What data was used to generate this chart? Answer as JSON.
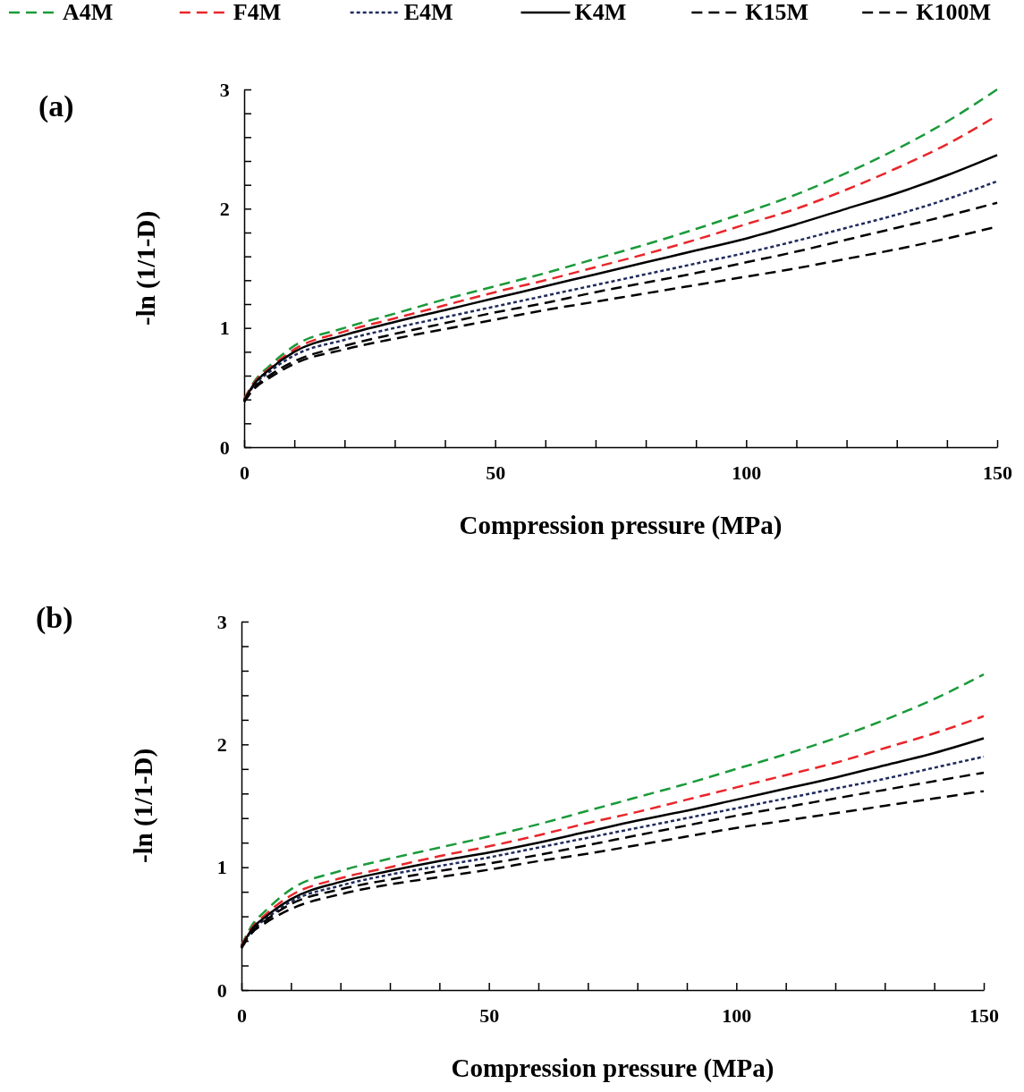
{
  "chart_data": [
    {
      "type": "line",
      "title": "(a)",
      "xlabel": "Compression pressure (MPa)",
      "ylabel": "-ln (1/1-D)",
      "legend": "top",
      "grid": false,
      "marker": "none",
      "x": [
        0,
        2,
        5,
        10,
        20,
        30,
        40,
        50,
        60,
        70,
        80,
        90,
        100,
        110,
        120,
        130,
        140,
        150
      ],
      "xlim": [
        0,
        150
      ],
      "ylim": [
        0,
        3
      ],
      "xticks": [
        0,
        {
          "value": 10,
          "label": null
        },
        {
          "value": 20,
          "label": null
        },
        {
          "value": 30,
          "label": null
        },
        {
          "value": 40,
          "label": null
        },
        50,
        {
          "value": 60,
          "label": null
        },
        {
          "value": 70,
          "label": null
        },
        {
          "value": 80,
          "label": null
        },
        {
          "value": 90,
          "label": null
        },
        100,
        {
          "value": 110,
          "label": null
        },
        {
          "value": 120,
          "label": null
        },
        {
          "value": 130,
          "label": null
        },
        {
          "value": 140,
          "label": null
        },
        150
      ],
      "yticks": [
        0,
        {
          "value": 0.2,
          "label": null
        },
        {
          "value": 0.4,
          "label": null
        },
        {
          "value": 0.6,
          "label": null
        },
        {
          "value": 0.8,
          "label": null
        },
        1,
        {
          "value": 1.2,
          "label": null
        },
        {
          "value": 1.4,
          "label": null
        },
        {
          "value": 1.6,
          "label": null
        },
        {
          "value": 1.8,
          "label": null
        },
        2,
        {
          "value": 2.2,
          "label": null
        },
        {
          "value": 2.4,
          "label": null
        },
        {
          "value": 2.6,
          "label": null
        },
        {
          "value": 2.8,
          "label": null
        },
        3
      ],
      "series": [
        {
          "name": "A4M",
          "color": "#1a9a3a",
          "line_style": "dashed",
          "values": [
            0.4,
            0.55,
            0.68,
            0.85,
            1.0,
            1.12,
            1.24,
            1.35,
            1.46,
            1.58,
            1.7,
            1.83,
            1.97,
            2.12,
            2.3,
            2.5,
            2.73,
            3.0
          ]
        },
        {
          "name": "F4M",
          "color": "#e8262a",
          "line_style": "dashed",
          "values": [
            0.4,
            0.54,
            0.66,
            0.82,
            0.97,
            1.08,
            1.19,
            1.3,
            1.4,
            1.51,
            1.62,
            1.74,
            1.87,
            2.0,
            2.16,
            2.34,
            2.54,
            2.78
          ]
        },
        {
          "name": "E4M",
          "color": "#1f2a5c",
          "line_style": "dotted",
          "values": [
            0.39,
            0.52,
            0.63,
            0.77,
            0.9,
            1.0,
            1.09,
            1.18,
            1.27,
            1.36,
            1.45,
            1.54,
            1.63,
            1.73,
            1.84,
            1.95,
            2.08,
            2.23
          ]
        },
        {
          "name": "K4M",
          "color": "#000000",
          "line_style": "solid",
          "values": [
            0.39,
            0.53,
            0.65,
            0.8,
            0.94,
            1.05,
            1.15,
            1.25,
            1.35,
            1.45,
            1.55,
            1.65,
            1.75,
            1.87,
            2.0,
            2.13,
            2.28,
            2.45
          ]
        },
        {
          "name": "K15M",
          "color": "#000000",
          "line_style": "dashed",
          "values": [
            0.38,
            0.5,
            0.6,
            0.72,
            0.85,
            0.95,
            1.04,
            1.13,
            1.21,
            1.3,
            1.38,
            1.46,
            1.55,
            1.64,
            1.74,
            1.84,
            1.94,
            2.05
          ]
        },
        {
          "name": "K100M",
          "color": "#000000",
          "line_style": "dashed",
          "values": [
            0.38,
            0.49,
            0.58,
            0.7,
            0.82,
            0.91,
            0.99,
            1.07,
            1.15,
            1.22,
            1.29,
            1.36,
            1.43,
            1.5,
            1.58,
            1.66,
            1.75,
            1.85
          ]
        }
      ]
    },
    {
      "type": "line",
      "title": "(b)",
      "xlabel": "Compression pressure (MPa)",
      "ylabel": "-ln (1/1-D)",
      "grid": false,
      "marker": "none",
      "x": [
        0,
        2,
        5,
        10,
        20,
        30,
        40,
        50,
        60,
        70,
        80,
        90,
        100,
        110,
        120,
        130,
        140,
        150
      ],
      "xlim": [
        0,
        150
      ],
      "ylim": [
        0,
        3
      ],
      "xticks": [
        0,
        {
          "value": 10,
          "label": null
        },
        {
          "value": 20,
          "label": null
        },
        {
          "value": 30,
          "label": null
        },
        {
          "value": 40,
          "label": null
        },
        50,
        {
          "value": 60,
          "label": null
        },
        {
          "value": 70,
          "label": null
        },
        {
          "value": 80,
          "label": null
        },
        {
          "value": 90,
          "label": null
        },
        100,
        {
          "value": 110,
          "label": null
        },
        {
          "value": 120,
          "label": null
        },
        {
          "value": 130,
          "label": null
        },
        {
          "value": 140,
          "label": null
        },
        150
      ],
      "yticks": [
        0,
        {
          "value": 0.2,
          "label": null
        },
        {
          "value": 0.4,
          "label": null
        },
        {
          "value": 0.6,
          "label": null
        },
        {
          "value": 0.8,
          "label": null
        },
        1,
        {
          "value": 1.2,
          "label": null
        },
        {
          "value": 1.4,
          "label": null
        },
        {
          "value": 1.6,
          "label": null
        },
        {
          "value": 1.8,
          "label": null
        },
        2,
        {
          "value": 2.2,
          "label": null
        },
        {
          "value": 2.4,
          "label": null
        },
        {
          "value": 2.6,
          "label": null
        },
        {
          "value": 2.8,
          "label": null
        },
        3
      ],
      "series": [
        {
          "color": "#1a9a3a",
          "line_style": "dashed",
          "values": [
            0.36,
            0.52,
            0.65,
            0.82,
            0.97,
            1.07,
            1.16,
            1.25,
            1.35,
            1.46,
            1.57,
            1.68,
            1.8,
            1.92,
            2.05,
            2.2,
            2.37,
            2.57
          ]
        },
        {
          "color": "#e8262a",
          "line_style": "dashed",
          "values": [
            0.36,
            0.5,
            0.62,
            0.77,
            0.91,
            1.0,
            1.09,
            1.17,
            1.26,
            1.36,
            1.45,
            1.55,
            1.65,
            1.75,
            1.85,
            1.97,
            2.09,
            2.23
          ]
        },
        {
          "color": "#1f2a5c",
          "line_style": "dotted",
          "values": [
            0.35,
            0.48,
            0.58,
            0.72,
            0.85,
            0.94,
            1.01,
            1.08,
            1.16,
            1.24,
            1.32,
            1.4,
            1.48,
            1.56,
            1.64,
            1.72,
            1.81,
            1.9
          ]
        },
        {
          "color": "#000000",
          "line_style": "solid",
          "values": [
            0.35,
            0.49,
            0.6,
            0.74,
            0.88,
            0.97,
            1.05,
            1.12,
            1.2,
            1.29,
            1.38,
            1.46,
            1.55,
            1.64,
            1.73,
            1.83,
            1.93,
            2.05
          ]
        },
        {
          "color": "#000000",
          "line_style": "dashed",
          "values": [
            0.35,
            0.47,
            0.57,
            0.7,
            0.82,
            0.9,
            0.97,
            1.03,
            1.1,
            1.18,
            1.26,
            1.34,
            1.42,
            1.49,
            1.56,
            1.63,
            1.7,
            1.77
          ]
        },
        {
          "color": "#000000",
          "line_style": "dashed",
          "values": [
            0.34,
            0.46,
            0.55,
            0.66,
            0.78,
            0.86,
            0.92,
            0.98,
            1.05,
            1.11,
            1.18,
            1.25,
            1.32,
            1.38,
            1.44,
            1.5,
            1.56,
            1.62
          ]
        }
      ]
    }
  ]
}
